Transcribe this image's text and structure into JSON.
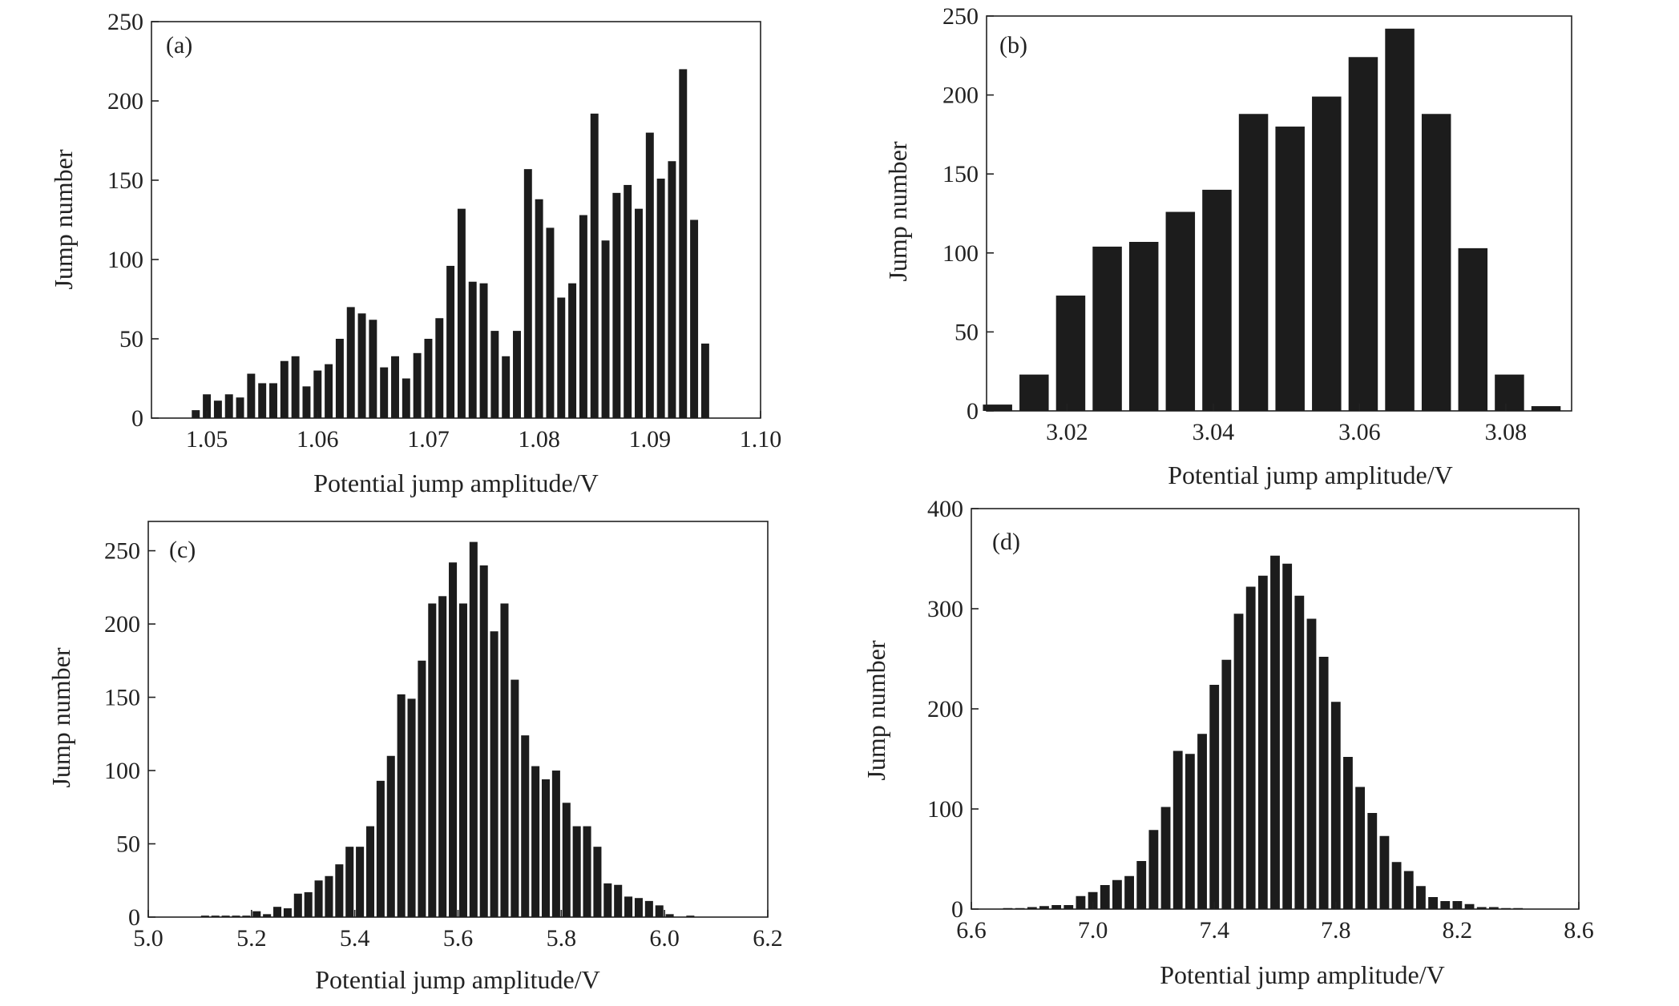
{
  "chart_data": [
    {
      "type": "bar",
      "panel_label": "(a)",
      "xlabel": "Potential jump amplitude/V",
      "ylabel": "Jump number",
      "xlim": [
        1.045,
        1.1
      ],
      "ylim": [
        0,
        250
      ],
      "xticks": [
        1.05,
        1.06,
        1.07,
        1.08,
        1.09,
        1.1
      ],
      "xtick_labels": [
        "1.05",
        "1.06",
        "1.07",
        "1.08",
        "1.09",
        "1.10"
      ],
      "yticks": [
        0,
        50,
        100,
        150,
        200,
        250
      ],
      "ytick_labels": [
        "0",
        "50",
        "100",
        "150",
        "200",
        "250"
      ],
      "bin_width": 0.001,
      "x": [
        1.049,
        1.05,
        1.051,
        1.052,
        1.053,
        1.054,
        1.055,
        1.056,
        1.057,
        1.058,
        1.059,
        1.06,
        1.061,
        1.062,
        1.063,
        1.064,
        1.065,
        1.066,
        1.067,
        1.068,
        1.069,
        1.07,
        1.071,
        1.072,
        1.073,
        1.074,
        1.075,
        1.076,
        1.077,
        1.078,
        1.079,
        1.08,
        1.081,
        1.082,
        1.083,
        1.084,
        1.085,
        1.086,
        1.087,
        1.088,
        1.089,
        1.09,
        1.091,
        1.092,
        1.093,
        1.094,
        1.095,
        1.096
      ],
      "values": [
        5,
        15,
        11,
        15,
        13,
        28,
        22,
        22,
        36,
        39,
        20,
        30,
        34,
        50,
        70,
        66,
        62,
        32,
        39,
        25,
        41,
        50,
        63,
        96,
        132,
        86,
        85,
        55,
        39,
        55,
        157,
        138,
        120,
        76,
        85,
        128,
        192,
        112,
        142,
        147,
        132,
        180,
        151,
        162,
        220,
        125,
        47,
        0
      ]
    },
    {
      "type": "bar",
      "panel_label": "(b)",
      "xlabel": "Potential jump amplitude/V",
      "ylabel": "Jump number",
      "xlim": [
        3.009,
        3.089
      ],
      "ylim": [
        0,
        250
      ],
      "xticks": [
        3.02,
        3.04,
        3.06,
        3.08
      ],
      "xtick_labels": [
        "3.02",
        "3.04",
        "3.06",
        "3.08"
      ],
      "yticks": [
        0,
        50,
        100,
        150,
        200,
        250
      ],
      "ytick_labels": [
        "0",
        "50",
        "100",
        "150",
        "200",
        "250"
      ],
      "bin_width": 0.005,
      "x": [
        3.0105,
        3.0155,
        3.0205,
        3.0255,
        3.0305,
        3.0355,
        3.0405,
        3.0455,
        3.0505,
        3.0555,
        3.0605,
        3.0655,
        3.0705,
        3.0755,
        3.0805,
        3.0855
      ],
      "values": [
        4,
        23,
        73,
        104,
        107,
        126,
        140,
        188,
        180,
        199,
        224,
        242,
        188,
        103,
        23,
        3
      ]
    },
    {
      "type": "bar",
      "panel_label": "(c)",
      "xlabel": "Potential jump amplitude/V",
      "ylabel": "Jump number",
      "xlim": [
        5.0,
        6.2
      ],
      "ylim": [
        0,
        270
      ],
      "xticks": [
        5.0,
        5.2,
        5.4,
        5.6,
        5.8,
        6.0,
        6.2
      ],
      "xtick_labels": [
        "5.0",
        "5.2",
        "5.4",
        "5.6",
        "5.8",
        "6.0",
        "6.2"
      ],
      "yticks": [
        0,
        50,
        100,
        150,
        200,
        250
      ],
      "ytick_labels": [
        "0",
        "50",
        "100",
        "150",
        "200",
        "250"
      ],
      "bin_width": 0.02,
      "x": [
        5.11,
        5.13,
        5.15,
        5.17,
        5.19,
        5.21,
        5.23,
        5.25,
        5.27,
        5.29,
        5.31,
        5.33,
        5.35,
        5.37,
        5.39,
        5.41,
        5.43,
        5.45,
        5.47,
        5.49,
        5.51,
        5.53,
        5.55,
        5.57,
        5.59,
        5.61,
        5.63,
        5.65,
        5.67,
        5.69,
        5.71,
        5.73,
        5.75,
        5.77,
        5.79,
        5.81,
        5.83,
        5.85,
        5.87,
        5.89,
        5.91,
        5.93,
        5.95,
        5.97,
        5.99,
        6.01,
        6.03,
        6.05
      ],
      "values": [
        1,
        1,
        1,
        1,
        1,
        4,
        2,
        7,
        6,
        16,
        17,
        25,
        28,
        36,
        48,
        48,
        62,
        93,
        110,
        152,
        149,
        175,
        214,
        219,
        242,
        214,
        256,
        240,
        195,
        214,
        162,
        124,
        103,
        94,
        100,
        78,
        62,
        62,
        48,
        23,
        22,
        14,
        13,
        11,
        8,
        2,
        0,
        1
      ]
    },
    {
      "type": "bar",
      "panel_label": "(d)",
      "xlabel": "Potential jump amplitude/V",
      "ylabel": "Jump number",
      "xlim": [
        6.6,
        8.6
      ],
      "ylim": [
        0,
        400
      ],
      "xticks": [
        6.6,
        7.0,
        7.4,
        7.8,
        8.2,
        8.6
      ],
      "xtick_labels": [
        "6.6",
        "7.0",
        "7.4",
        "7.8",
        "8.2",
        "8.6"
      ],
      "yticks": [
        0,
        100,
        200,
        300,
        400
      ],
      "ytick_labels": [
        "0",
        "100",
        "200",
        "300",
        "400"
      ],
      "bin_width": 0.04,
      "x": [
        6.72,
        6.76,
        6.8,
        6.84,
        6.88,
        6.92,
        6.96,
        7.0,
        7.04,
        7.08,
        7.12,
        7.16,
        7.2,
        7.24,
        7.28,
        7.32,
        7.36,
        7.4,
        7.44,
        7.48,
        7.52,
        7.56,
        7.6,
        7.64,
        7.68,
        7.72,
        7.76,
        7.8,
        7.84,
        7.88,
        7.92,
        7.96,
        8.0,
        8.04,
        8.08,
        8.12,
        8.16,
        8.2,
        8.24,
        8.28,
        8.32,
        8.36,
        8.4,
        8.44
      ],
      "values": [
        1,
        1,
        2,
        3,
        4,
        4,
        13,
        17,
        24,
        29,
        33,
        48,
        79,
        102,
        158,
        155,
        175,
        224,
        249,
        295,
        322,
        333,
        353,
        345,
        313,
        290,
        252,
        207,
        152,
        122,
        96,
        73,
        47,
        38,
        23,
        12,
        8,
        8,
        5,
        2,
        2,
        1,
        1,
        0
      ]
    }
  ]
}
